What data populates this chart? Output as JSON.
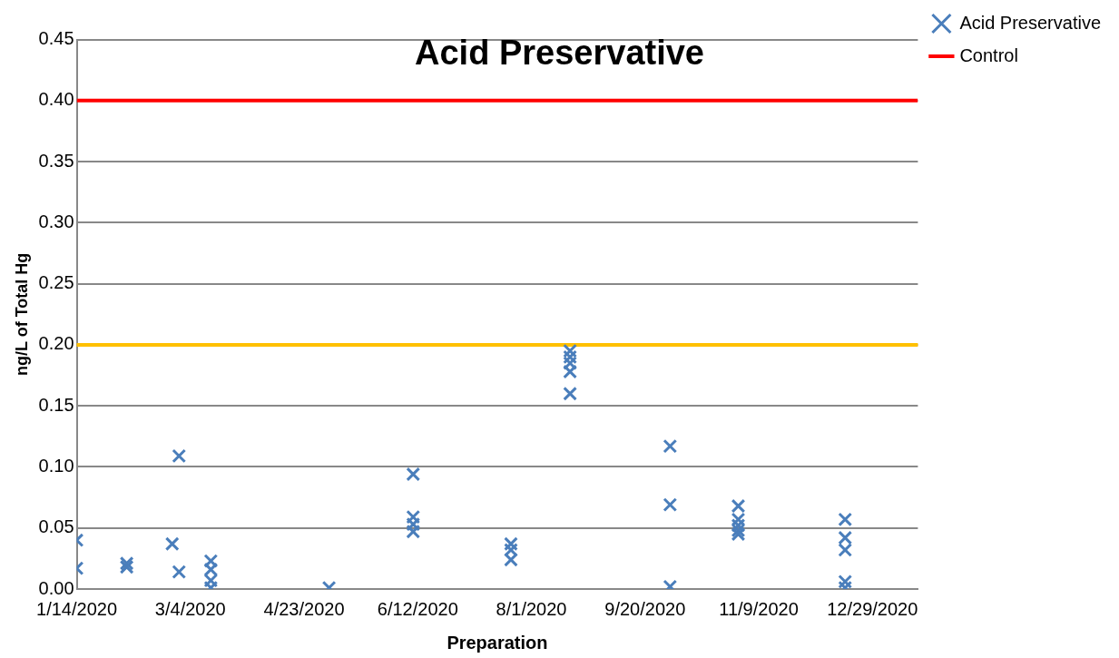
{
  "chart_data": {
    "type": "scatter",
    "title": "Acid Preservative",
    "xlabel": "Preparation",
    "ylabel": "ng/L of Total Hg",
    "xlim": [
      "2020-01-14",
      "2021-01-18"
    ],
    "xticks": [
      {
        "value": "2020-01-14",
        "label": "1/14/2020"
      },
      {
        "value": "2020-03-04",
        "label": "3/4/2020"
      },
      {
        "value": "2020-04-23",
        "label": "4/23/2020"
      },
      {
        "value": "2020-06-12",
        "label": "6/12/2020"
      },
      {
        "value": "2020-08-01",
        "label": "8/1/2020"
      },
      {
        "value": "2020-09-20",
        "label": "9/20/2020"
      },
      {
        "value": "2020-11-09",
        "label": "11/9/2020"
      },
      {
        "value": "2020-12-29",
        "label": "12/29/2020"
      }
    ],
    "ylim": [
      0,
      0.45
    ],
    "yticks": [
      {
        "value": 0,
        "label": "0.00"
      },
      {
        "value": 0.05,
        "label": "0.05"
      },
      {
        "value": 0.1,
        "label": "0.10"
      },
      {
        "value": 0.15,
        "label": "0.15"
      },
      {
        "value": 0.2,
        "label": "0.20"
      },
      {
        "value": 0.25,
        "label": "0.25"
      },
      {
        "value": 0.3,
        "label": "0.30"
      },
      {
        "value": 0.35,
        "label": "0.35"
      },
      {
        "value": 0.4,
        "label": "0.40"
      },
      {
        "value": 0.45,
        "label": "0.45"
      }
    ],
    "grid": "y",
    "legend": "right",
    "marker": "cross",
    "series": [
      {
        "name": "Acid Preservative",
        "color": "#4a7ebb",
        "x": [
          "2020-01-14",
          "2020-01-14",
          "2020-02-05",
          "2020-02-05",
          "2020-02-25",
          "2020-02-28",
          "2020-02-28",
          "2020-03-13",
          "2020-03-13",
          "2020-03-13",
          "2020-03-13",
          "2020-05-04",
          "2020-06-10",
          "2020-06-10",
          "2020-06-10",
          "2020-06-10",
          "2020-07-23",
          "2020-07-23",
          "2020-07-23",
          "2020-08-18",
          "2020-08-18",
          "2020-08-18",
          "2020-08-18",
          "2020-08-18",
          "2020-10-01",
          "2020-10-01",
          "2020-10-01",
          "2020-10-31",
          "2020-10-31",
          "2020-10-31",
          "2020-10-31",
          "2020-10-31",
          "2020-12-17",
          "2020-12-17",
          "2020-12-17",
          "2020-12-17",
          "2020-12-17"
        ],
        "values": [
          0.04,
          0.017,
          0.021,
          0.018,
          0.037,
          0.109,
          0.014,
          0.023,
          0.016,
          0.007,
          0.001,
          0.001,
          0.094,
          0.059,
          0.053,
          0.047,
          0.037,
          0.032,
          0.024,
          0.195,
          0.19,
          0.185,
          0.178,
          0.16,
          0.117,
          0.069,
          0.002,
          0.068,
          0.057,
          0.052,
          0.048,
          0.045,
          0.057,
          0.042,
          0.032,
          0.006,
          0.001
        ]
      },
      {
        "name": "Control",
        "color": "#ff0000",
        "type": "line",
        "marker": "none",
        "x": [
          "2020-01-14",
          "2021-01-18"
        ],
        "values": [
          0.4,
          0.4
        ]
      }
    ],
    "ref_lines": [
      {
        "axis": "y",
        "value": 0.2,
        "color": "#ffc000"
      }
    ]
  }
}
